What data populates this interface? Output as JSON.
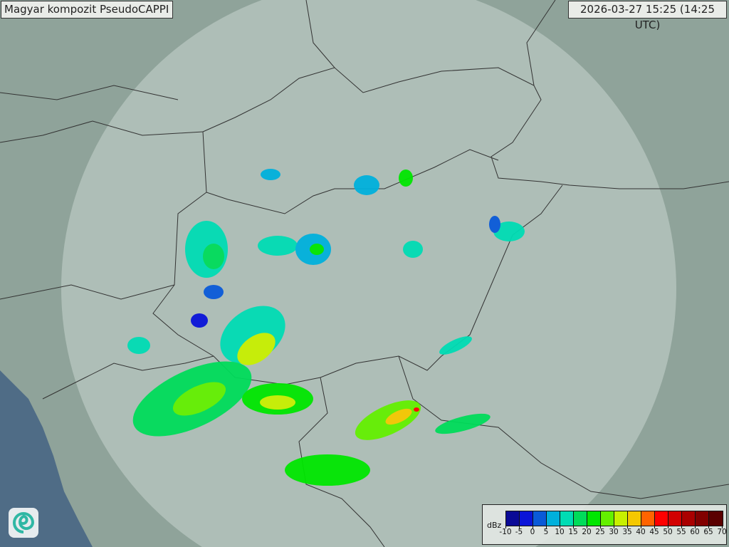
{
  "title": "Magyar kompozit  PseudoCAPPI",
  "timestamp": "2026-03-27 15:25 (14:25 UTC)",
  "legend": {
    "unit": "dBz",
    "ticks": [
      "-10",
      "-5",
      "0",
      "5",
      "10",
      "15",
      "20",
      "25",
      "30",
      "35",
      "40",
      "45",
      "50",
      "55",
      "60",
      "65",
      "70"
    ],
    "colors": [
      "#0a0a96",
      "#0a14d8",
      "#0a5ad8",
      "#00b0dc",
      "#00dcb4",
      "#00dc5a",
      "#00e600",
      "#64f000",
      "#c8f000",
      "#f5c800",
      "#ff6400",
      "#ff0000",
      "#d20000",
      "#aa0000",
      "#820000",
      "#5a0000"
    ]
  },
  "logo": {
    "icon": "spiral-logo-icon"
  },
  "map": {
    "land_color": "#8fa39a",
    "coverage_color": "#c9d6d0",
    "sea_color": "#4f6c86"
  }
}
